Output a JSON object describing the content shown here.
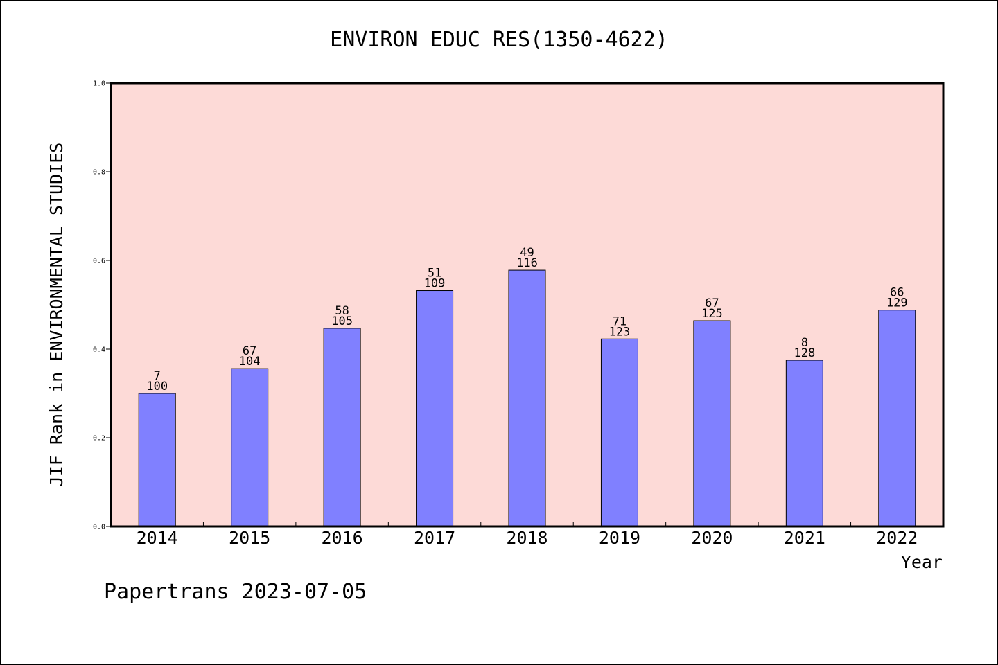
{
  "chart_data": {
    "type": "bar",
    "title": "ENVIRON EDUC RES(1350-4622)",
    "xlabel": "Year",
    "ylabel": "JIF Rank in ENVIRONMENTAL STUDIES",
    "ylim": [
      0,
      1.0
    ],
    "yticks": [
      "0.0",
      "0.2",
      "0.4",
      "0.6",
      "0.8",
      "1.0"
    ],
    "categories": [
      "2014",
      "2015",
      "2016",
      "2017",
      "2018",
      "2019",
      "2020",
      "2021",
      "2022"
    ],
    "values": [
      0.3,
      0.356,
      0.447,
      0.532,
      0.578,
      0.423,
      0.464,
      0.375,
      0.488
    ],
    "labels_top": [
      "7",
      "67",
      "58",
      "51",
      "49",
      "71",
      "67",
      "8",
      "66"
    ],
    "labels_bottom": [
      "100",
      "104",
      "105",
      "109",
      "116",
      "123",
      "125",
      "128",
      "129"
    ],
    "grid": false,
    "colors": {
      "plot_bg": "#fddad7",
      "bar": "#8080ff",
      "axis": "#000000"
    }
  },
  "footer": "Papertrans 2023-07-05"
}
